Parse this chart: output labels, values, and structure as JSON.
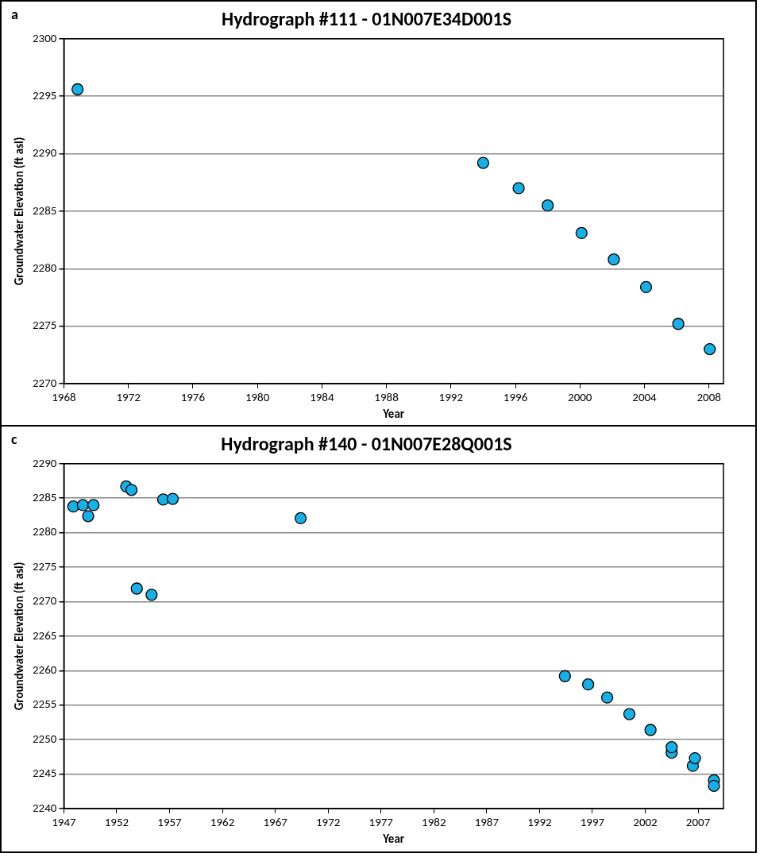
{
  "chart_data": [
    {
      "type": "scatter",
      "title": "Hydrograph #111 - 01N007E34D001S",
      "xlabel": "Year",
      "ylabel": "Groundwater Elevation (ft asl)",
      "annotations": [
        "a"
      ],
      "series": [
        {
          "color": "#1aaee5",
          "x": [
            1968.85,
            1994.0,
            1996.2,
            1998.0,
            2000.1,
            2002.1,
            2004.1,
            2006.1,
            2008.05
          ],
          "values": [
            2295.6,
            2289.2,
            2287.0,
            2285.5,
            2283.1,
            2280.8,
            2278.4,
            2275.2,
            2273.0
          ]
        }
      ],
      "xlim": [
        1968,
        2008.9
      ],
      "xticks": [
        1968,
        1972,
        1976,
        1980,
        1984,
        1988,
        1992,
        1996,
        2000,
        2004,
        2008
      ],
      "ylim": [
        2270,
        2300
      ],
      "yticks": [
        2270,
        2275,
        2280,
        2285,
        2290,
        2295,
        2300
      ],
      "grid": "y",
      "marker": "circle",
      "legend": false
    },
    {
      "type": "scatter",
      "title": "Hydrograph #140 - 01N007E28Q001S",
      "xlabel": "Year",
      "ylabel": "Groundwater Elevation (ft asl)",
      "annotations": [
        "c"
      ],
      "series": [
        {
          "color": "#1aaee5",
          "x": [
            1947.9,
            1948.8,
            1949.3,
            1949.8,
            1952.9,
            1953.4,
            1953.9,
            1955.3,
            1956.4,
            1957.3,
            1969.4,
            1994.4,
            1996.6,
            1998.4,
            2000.5,
            2002.5,
            2004.5,
            2004.5,
            2006.5,
            2006.7,
            2008.5,
            2008.5
          ],
          "values": [
            2283.8,
            2284.0,
            2282.4,
            2284.0,
            2286.7,
            2286.2,
            2271.9,
            2271.0,
            2284.8,
            2284.9,
            2282.1,
            2259.2,
            2258.0,
            2256.1,
            2253.7,
            2251.4,
            2248.1,
            2248.9,
            2246.2,
            2247.3,
            2244.1,
            2243.3
          ]
        }
      ],
      "xlim": [
        1947,
        2009.4
      ],
      "xticks": [
        1947,
        1952,
        1957,
        1962,
        1967,
        1972,
        1977,
        1982,
        1987,
        1992,
        1997,
        2002,
        2007
      ],
      "ylim": [
        2240,
        2290
      ],
      "yticks": [
        2240,
        2245,
        2250,
        2255,
        2260,
        2265,
        2270,
        2275,
        2280,
        2285,
        2290
      ],
      "grid": "y",
      "marker": "circle",
      "legend": false
    }
  ]
}
